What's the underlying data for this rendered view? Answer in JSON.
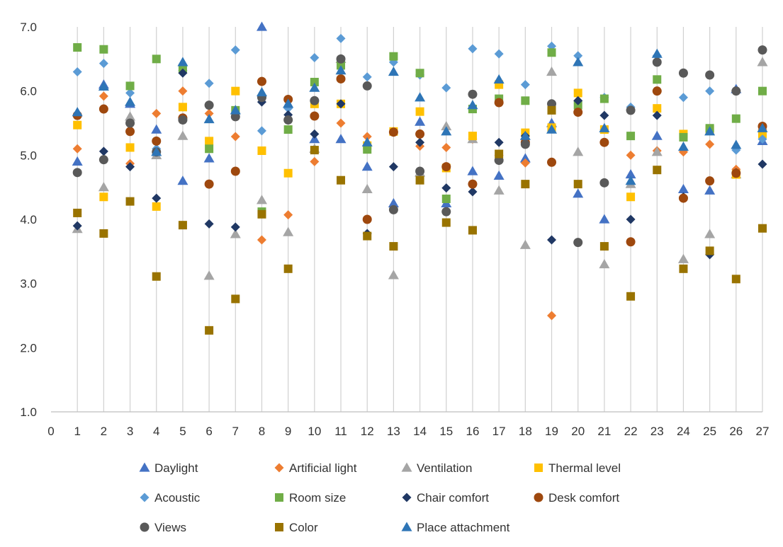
{
  "chart_data": {
    "type": "scatter",
    "x": [
      1,
      2,
      3,
      4,
      5,
      6,
      7,
      8,
      9,
      10,
      11,
      12,
      13,
      14,
      15,
      16,
      17,
      18,
      19,
      20,
      21,
      22,
      23,
      24,
      25,
      26,
      27
    ],
    "xlim": [
      0,
      27
    ],
    "x_ticks": [
      "0",
      "1",
      "2",
      "3",
      "4",
      "5",
      "6",
      "7",
      "8",
      "9",
      "10",
      "11",
      "12",
      "13",
      "14",
      "15",
      "16",
      "17",
      "18",
      "19",
      "20",
      "21",
      "22",
      "23",
      "24",
      "25",
      "26",
      "27"
    ],
    "ylim": [
      1.0,
      7.0
    ],
    "y_ticks": [
      "1.0",
      "2.0",
      "3.0",
      "4.0",
      "5.0",
      "6.0",
      "7.0"
    ],
    "grid": "vertical",
    "legend_position": "bottom",
    "series": [
      {
        "name": "Daylight",
        "color": "#4472C4",
        "marker": "triangle",
        "values": [
          4.9,
          6.1,
          5.8,
          5.4,
          4.6,
          4.95,
          5.7,
          7.0,
          5.8,
          5.25,
          5.25,
          4.82,
          4.25,
          5.52,
          4.25,
          4.75,
          4.68,
          4.95,
          5.5,
          4.4,
          4.0,
          4.7,
          5.3,
          4.47,
          4.45,
          6.03,
          5.22
        ]
      },
      {
        "name": "Artificial light",
        "color": "#ED7D31",
        "marker": "diamond",
        "values": [
          5.1,
          5.92,
          4.87,
          5.65,
          6.0,
          5.65,
          5.29,
          3.68,
          4.07,
          4.9,
          5.5,
          5.29,
          5.37,
          5.14,
          5.12,
          5.25,
          5.0,
          4.88,
          2.5,
          5.85,
          5.4,
          5.0,
          5.07,
          5.05,
          5.17,
          4.78,
          5.4
        ]
      },
      {
        "name": "Ventilation",
        "color": "#A5A5A5",
        "marker": "triangle",
        "values": [
          3.85,
          4.5,
          5.6,
          5.0,
          5.3,
          3.12,
          3.77,
          4.3,
          3.8,
          5.1,
          6.5,
          4.47,
          3.13,
          4.73,
          5.45,
          5.25,
          4.45,
          3.6,
          6.3,
          5.05,
          3.3,
          4.55,
          5.05,
          3.38,
          3.77,
          4.7,
          6.45
        ]
      },
      {
        "name": "Thermal level",
        "color": "#FFC000",
        "marker": "square",
        "values": [
          5.47,
          4.35,
          5.12,
          4.2,
          5.75,
          5.22,
          6.0,
          5.07,
          4.72,
          5.8,
          5.8,
          5.15,
          5.37,
          5.68,
          4.8,
          5.3,
          6.1,
          5.35,
          5.43,
          5.97,
          5.4,
          4.35,
          5.73,
          5.33,
          5.4,
          4.7,
          5.33
        ]
      },
      {
        "name": "Acoustic",
        "color": "#5B9BD5",
        "marker": "diamond",
        "values": [
          6.3,
          6.43,
          5.97,
          5.1,
          6.32,
          6.12,
          6.64,
          5.38,
          5.73,
          6.52,
          6.82,
          6.22,
          6.45,
          6.25,
          6.05,
          6.66,
          6.58,
          6.1,
          6.7,
          6.55,
          5.9,
          5.75,
          6.55,
          5.9,
          6.0,
          5.08,
          5.25
        ]
      },
      {
        "name": "Room size",
        "color": "#70AD47",
        "marker": "square",
        "values": [
          6.68,
          6.65,
          6.08,
          6.5,
          6.35,
          5.1,
          5.7,
          4.12,
          5.4,
          6.14,
          6.4,
          5.09,
          6.54,
          6.28,
          4.32,
          5.72,
          5.88,
          5.85,
          6.6,
          5.78,
          5.88,
          5.3,
          6.18,
          5.28,
          5.42,
          5.57,
          6.0
        ]
      },
      {
        "name": "Chair comfort",
        "color": "#203864",
        "marker": "diamond",
        "values": [
          3.9,
          5.06,
          4.82,
          4.33,
          6.28,
          3.93,
          3.88,
          5.83,
          5.63,
          5.33,
          5.8,
          3.78,
          4.82,
          5.2,
          4.49,
          4.43,
          5.2,
          5.3,
          3.68,
          5.85,
          5.62,
          4.0,
          5.62,
          4.35,
          3.45,
          4.73,
          4.86
        ]
      },
      {
        "name": "Desk comfort",
        "color": "#9E480E",
        "marker": "circle",
        "values": [
          5.62,
          5.72,
          5.37,
          5.22,
          5.58,
          4.55,
          4.75,
          6.15,
          5.87,
          5.61,
          6.19,
          4.0,
          5.36,
          5.33,
          4.82,
          4.55,
          5.82,
          5.2,
          4.89,
          5.67,
          5.2,
          3.65,
          6.0,
          4.33,
          4.6,
          4.72,
          5.45
        ]
      },
      {
        "name": "Views",
        "color": "#595959",
        "marker": "circle",
        "values": [
          4.73,
          4.93,
          5.5,
          5.05,
          5.55,
          5.78,
          5.6,
          5.9,
          5.55,
          5.85,
          6.5,
          6.08,
          4.15,
          4.75,
          4.12,
          5.95,
          4.92,
          5.17,
          5.8,
          3.64,
          4.57,
          5.7,
          6.45,
          6.28,
          6.25,
          6.0,
          6.64
        ]
      },
      {
        "name": "Color",
        "color": "#997300",
        "marker": "square",
        "values": [
          4.1,
          3.78,
          4.28,
          3.11,
          3.91,
          2.27,
          2.76,
          4.08,
          3.23,
          5.08,
          4.61,
          3.74,
          3.58,
          4.61,
          3.95,
          3.83,
          5.02,
          4.55,
          5.7,
          4.55,
          3.58,
          2.8,
          4.77,
          3.23,
          3.51,
          3.07,
          3.86
        ]
      },
      {
        "name": "Place attachment",
        "color": "#2E75B6",
        "marker": "triangle",
        "values": [
          5.67,
          6.07,
          5.83,
          5.05,
          6.45,
          5.56,
          5.7,
          5.98,
          5.8,
          6.05,
          6.32,
          5.2,
          6.3,
          5.9,
          5.37,
          5.78,
          6.18,
          5.3,
          5.4,
          6.45,
          5.42,
          4.6,
          6.58,
          5.13,
          5.37,
          5.16,
          5.42
        ]
      }
    ]
  }
}
